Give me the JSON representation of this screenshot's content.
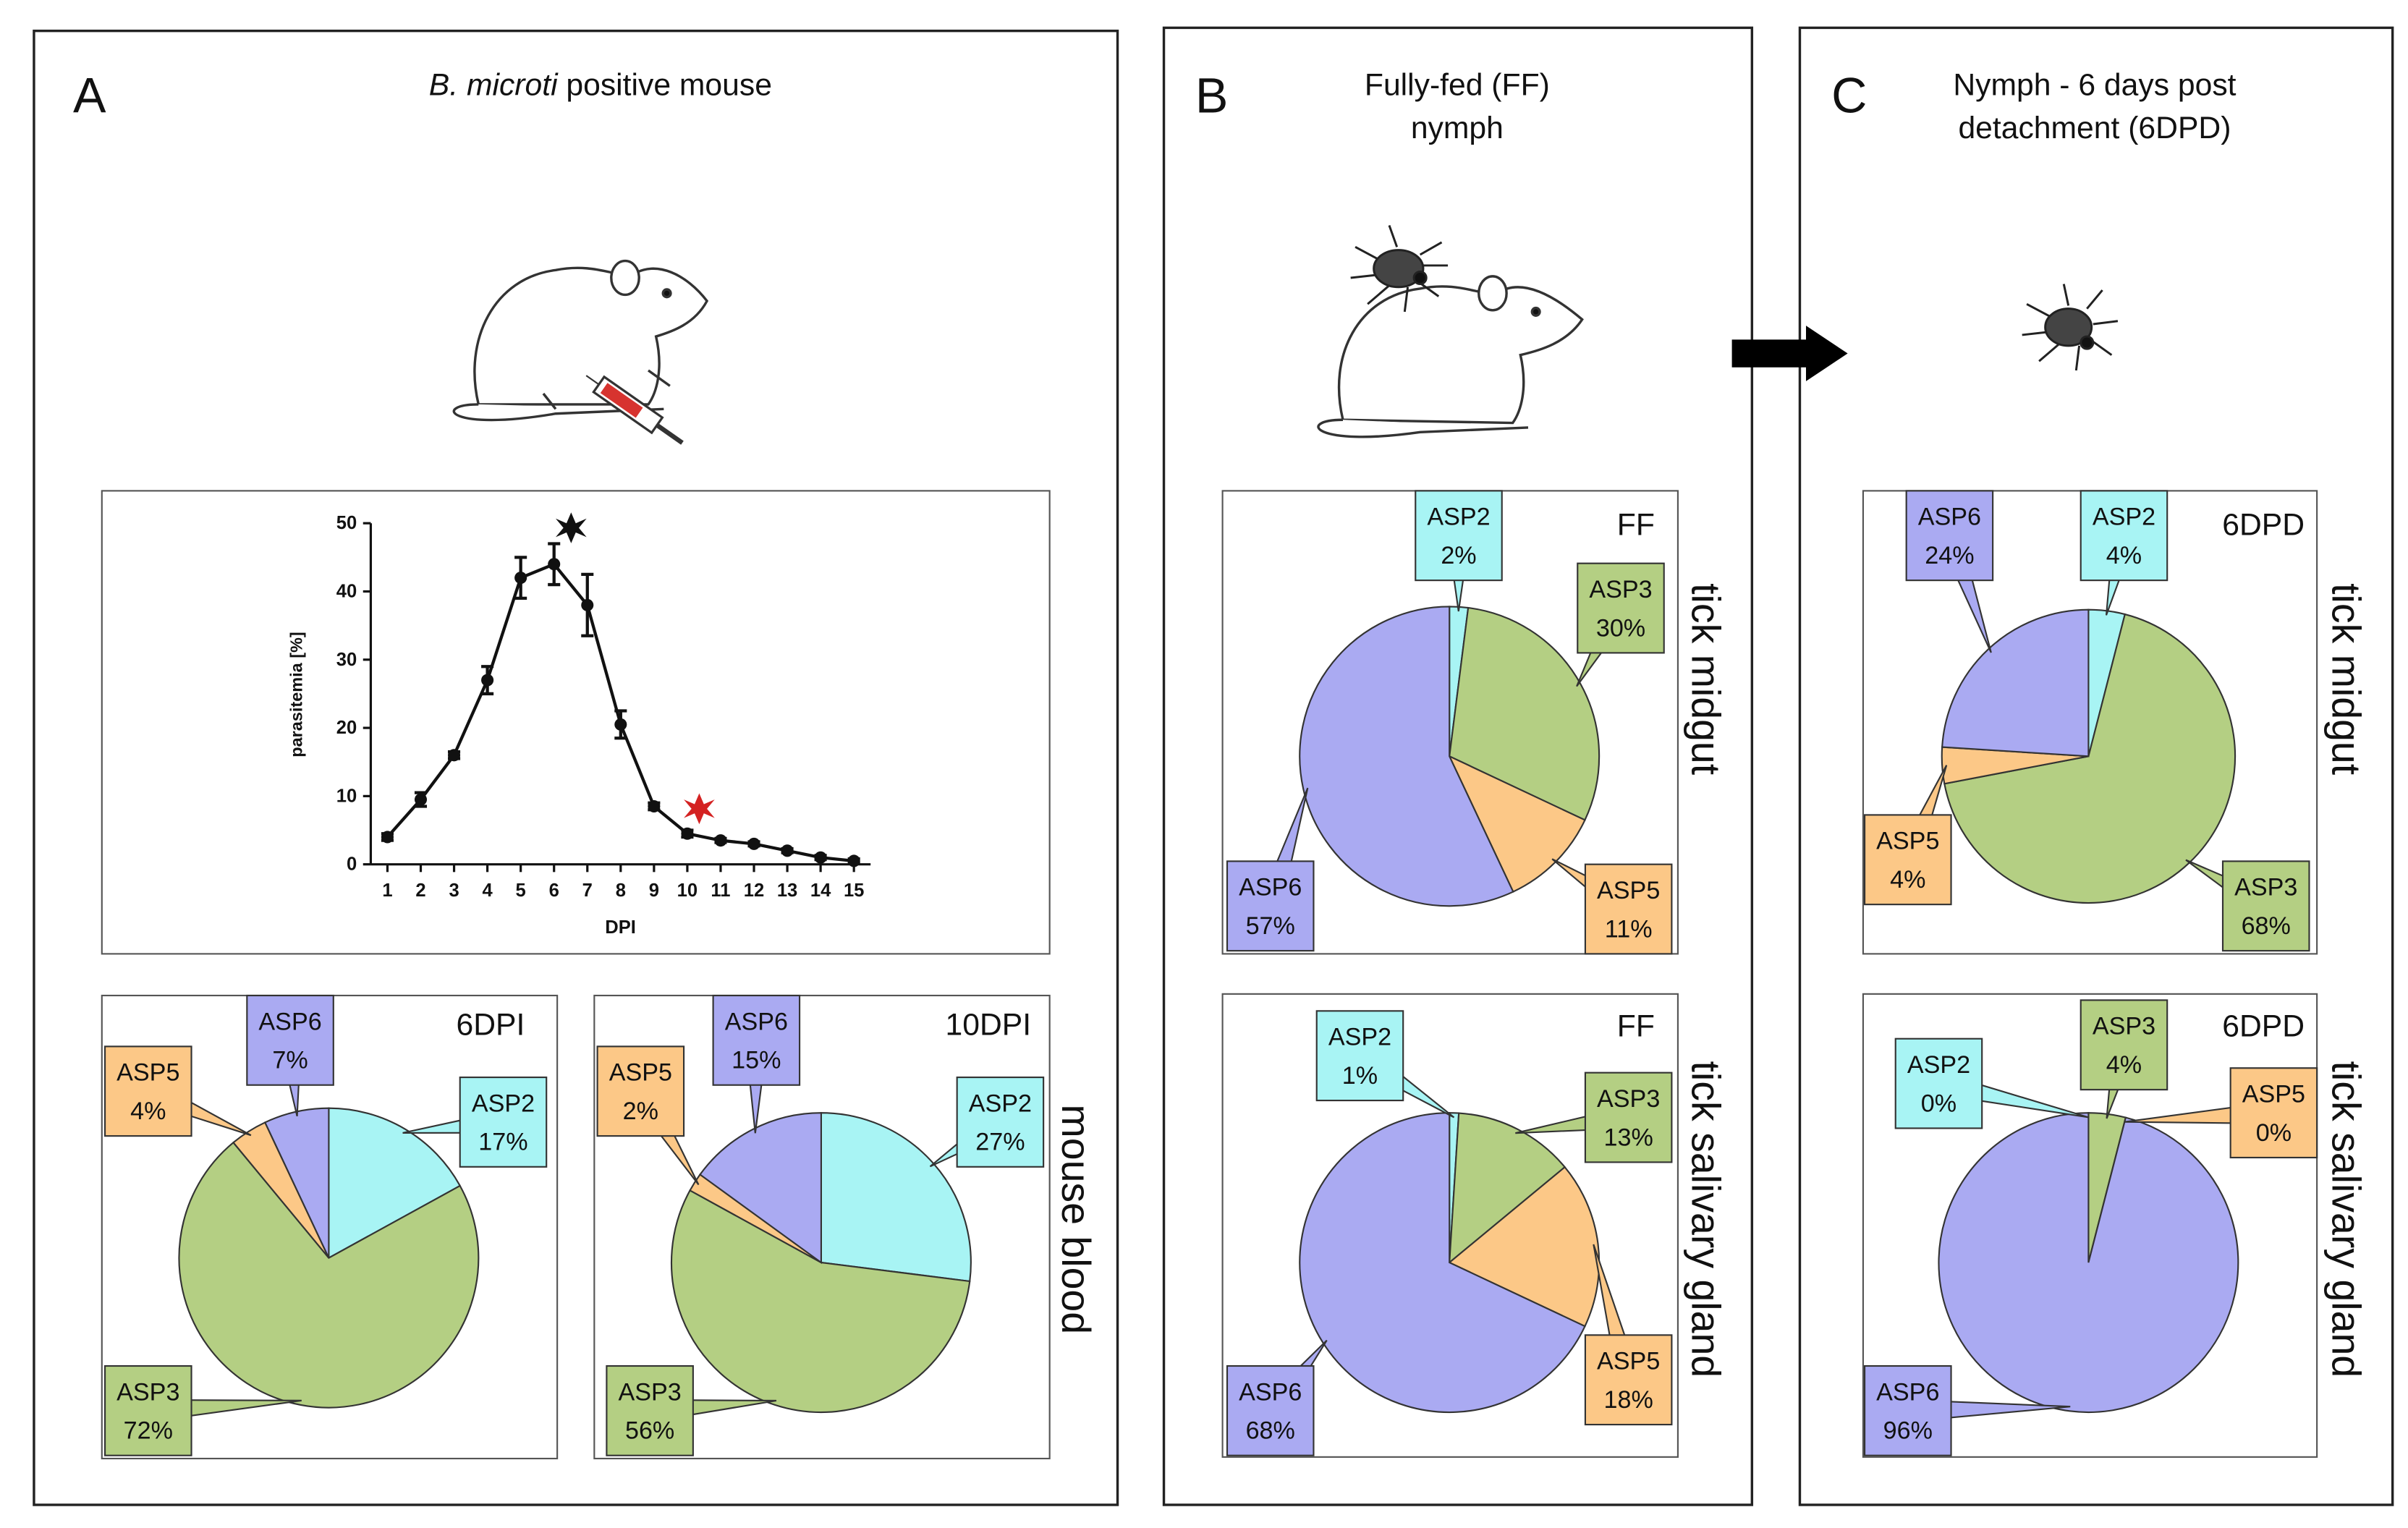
{
  "panels": [
    {
      "letter": "A",
      "title_italic": "B. microti",
      "title": "positive mouse"
    },
    {
      "letter": "B",
      "title": [
        "Fully-fed (FF)",
        "nymph"
      ]
    },
    {
      "letter": "C",
      "title": [
        "Nymph - 6 days post",
        "detachment (6DPD)"
      ]
    }
  ],
  "chart_data": [
    {
      "type": "line",
      "y_label": "parasitemia [%]",
      "x_label": "DPI",
      "color": "#111111",
      "x": [
        1,
        2,
        3,
        4,
        5,
        6,
        7,
        8,
        9,
        10,
        11,
        12,
        13,
        14,
        15
      ],
      "values": [
        4,
        9.5,
        16,
        27,
        42,
        44,
        38,
        20.5,
        8.5,
        4.5,
        3.5,
        3,
        2,
        1,
        0.5
      ],
      "errors": [
        0.5,
        1,
        0.5,
        2,
        3,
        3,
        4.5,
        2,
        0.5,
        0.5,
        0.3,
        0.3,
        0.3,
        0.3,
        0.3
      ],
      "xlim": [
        0.5,
        15.5
      ],
      "xticks": [
        1,
        2,
        3,
        4,
        5,
        6,
        7,
        8,
        9,
        10,
        11,
        12,
        13,
        14,
        15
      ],
      "ylim": [
        0,
        50
      ],
      "yticks": [
        0,
        10,
        20,
        30,
        40,
        50
      ]
    },
    {
      "type": "pie",
      "title": "6DPI",
      "categories": [
        "ASP2",
        "ASP3",
        "ASP5",
        "ASP6"
      ],
      "values": [
        17,
        72,
        4,
        7
      ],
      "value_labels": [
        "17%",
        "72%",
        "4%",
        "7%"
      ],
      "colors": [
        "#a8f4f4",
        "#b4cf83",
        "#fcc887",
        "#aaaaf2"
      ]
    },
    {
      "type": "pie",
      "title": "10DPI",
      "side_label": "mouse blood",
      "categories": [
        "ASP2",
        "ASP3",
        "ASP5",
        "ASP6"
      ],
      "values": [
        27,
        56,
        2,
        15
      ],
      "value_labels": [
        "27%",
        "56%",
        "2%",
        "15%"
      ],
      "colors": [
        "#a8f4f4",
        "#b4cf83",
        "#fcc887",
        "#aaaaf2"
      ]
    },
    {
      "type": "pie",
      "title": "FF",
      "side_label": "tick midgut",
      "categories": [
        "ASP2",
        "ASP3",
        "ASP5",
        "ASP6"
      ],
      "values": [
        2,
        30,
        11,
        57
      ],
      "value_labels": [
        "2%",
        "30%",
        "11%",
        "57%"
      ],
      "colors": [
        "#a8f4f4",
        "#b4cf83",
        "#fcc887",
        "#aaaaf2"
      ]
    },
    {
      "type": "pie",
      "title": "FF",
      "side_label": "tick salivary gland",
      "categories": [
        "ASP2",
        "ASP3",
        "ASP5",
        "ASP6"
      ],
      "values": [
        1,
        13,
        18,
        68
      ],
      "value_labels": [
        "1%",
        "13%",
        "18%",
        "68%"
      ],
      "colors": [
        "#a8f4f4",
        "#b4cf83",
        "#fcc887",
        "#aaaaf2"
      ]
    },
    {
      "type": "pie",
      "title": "6DPD",
      "side_label": "tick midgut",
      "categories": [
        "ASP2",
        "ASP3",
        "ASP5",
        "ASP6"
      ],
      "values": [
        4,
        68,
        4,
        24
      ],
      "value_labels": [
        "4%",
        "68%",
        "4%",
        "24%"
      ],
      "colors": [
        "#a8f4f4",
        "#b4cf83",
        "#fcc887",
        "#aaaaf2"
      ]
    },
    {
      "type": "pie",
      "title": "6DPD",
      "side_label": "tick salivary gland",
      "categories": [
        "ASP2",
        "ASP3",
        "ASP5",
        "ASP6"
      ],
      "values": [
        0,
        4,
        0,
        96
      ],
      "value_labels": [
        "0%",
        "4%",
        "0%",
        "96%"
      ],
      "colors": [
        "#a8f4f4",
        "#b4cf83",
        "#fcc887",
        "#aaaaf2"
      ]
    }
  ]
}
